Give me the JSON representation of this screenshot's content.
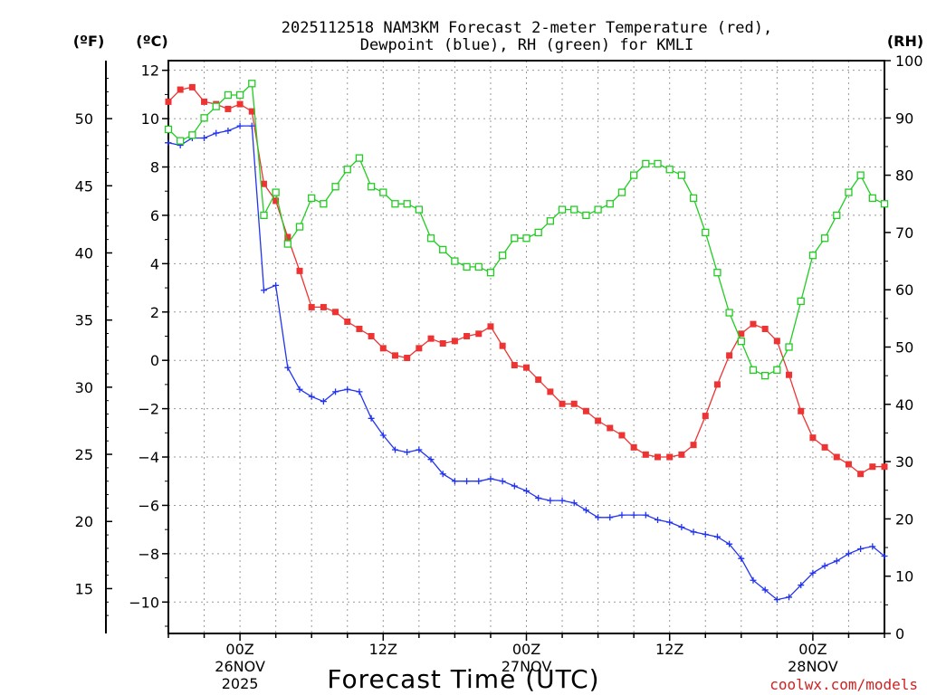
{
  "chart_data": {
    "type": "line",
    "title_line1": "2025112518 NAM3KM Forecast 2-meter Temperature (red),",
    "title_line2": "Dewpoint (blue), RH (green) for KMLI",
    "xlabel": "Forecast Time (UTC)",
    "left_axis_f_label": "(ºF)",
    "left_axis_c_label": "(ºC)",
    "right_axis_label": "(RH)",
    "watermark": "coolwx.com/models",
    "ylim_c": [
      -11.3,
      12.4
    ],
    "ylim_rh": [
      0,
      100
    ],
    "x_range_hours": [
      -6,
      54
    ],
    "c_ticks": [
      "12",
      "10",
      "8",
      "6",
      "4",
      "2",
      "0",
      "−2",
      "−4",
      "−6",
      "−8",
      "−10"
    ],
    "c_tick_values": [
      12,
      10,
      8,
      6,
      4,
      2,
      0,
      -2,
      -4,
      -6,
      -8,
      -10
    ],
    "f_ticks": [
      "50",
      "45",
      "40",
      "35",
      "30",
      "25",
      "20",
      "15"
    ],
    "f_tick_values": [
      50,
      45,
      40,
      35,
      30,
      25,
      20,
      15
    ],
    "rh_ticks": [
      "100",
      "90",
      "80",
      "70",
      "60",
      "50",
      "40",
      "30",
      "20",
      "10",
      "0"
    ],
    "rh_tick_values": [
      100,
      90,
      80,
      70,
      60,
      50,
      40,
      30,
      20,
      10,
      0
    ],
    "x_ticks": [
      {
        "hour": 0,
        "l1": "00Z",
        "l2": "26NOV",
        "l3": "2025"
      },
      {
        "hour": 12,
        "l1": "12Z",
        "l2": "",
        "l3": ""
      },
      {
        "hour": 24,
        "l1": "00Z",
        "l2": "27NOV",
        "l3": ""
      },
      {
        "hour": 36,
        "l1": "12Z",
        "l2": "",
        "l3": ""
      },
      {
        "hour": 48,
        "l1": "00Z",
        "l2": "28NOV",
        "l3": ""
      }
    ],
    "x_hours": [
      -6,
      -5,
      -4,
      -3,
      -2,
      -1,
      0,
      1,
      2,
      3,
      4,
      5,
      6,
      7,
      8,
      9,
      10,
      11,
      12,
      13,
      14,
      15,
      16,
      17,
      18,
      19,
      20,
      21,
      22,
      23,
      24,
      25,
      26,
      27,
      28,
      29,
      30,
      31,
      32,
      33,
      34,
      35,
      36,
      37,
      38,
      39,
      40,
      41,
      42,
      43,
      44,
      45,
      46,
      47,
      48,
      49,
      50,
      51,
      52,
      53,
      54
    ],
    "series": [
      {
        "name": "Temperature",
        "unit": "C",
        "color": "#ee3333",
        "marker": "filled-square",
        "values": [
          10.7,
          11.2,
          11.3,
          10.7,
          10.6,
          10.4,
          10.6,
          10.3,
          7.3,
          6.6,
          5.1,
          3.7,
          2.2,
          2.2,
          2.0,
          1.6,
          1.3,
          1.0,
          0.5,
          0.2,
          0.1,
          0.5,
          0.9,
          0.7,
          0.8,
          1.0,
          1.1,
          1.4,
          0.6,
          -0.2,
          -0.3,
          -0.8,
          -1.3,
          -1.8,
          -1.8,
          -2.1,
          -2.5,
          -2.8,
          -3.1,
          -3.6,
          -3.9,
          -4.0,
          -4.0,
          -3.9,
          -3.5,
          -2.3,
          -1.0,
          0.2,
          1.1,
          1.5,
          1.3,
          0.8,
          -0.6,
          -2.1,
          -3.2,
          -3.6,
          -4.0,
          -4.3,
          -4.7,
          -4.4,
          -4.4
        ]
      },
      {
        "name": "Dewpoint",
        "unit": "C",
        "color": "#2233ee",
        "marker": "plus",
        "values": [
          9.0,
          8.9,
          9.2,
          9.2,
          9.4,
          9.5,
          9.7,
          9.7,
          2.9,
          3.1,
          -0.3,
          -1.2,
          -1.5,
          -1.7,
          -1.3,
          -1.2,
          -1.3,
          -2.4,
          -3.1,
          -3.7,
          -3.8,
          -3.7,
          -4.1,
          -4.7,
          -5.0,
          -5.0,
          -5.0,
          -4.9,
          -5.0,
          -5.2,
          -5.4,
          -5.7,
          -5.8,
          -5.8,
          -5.9,
          -6.2,
          -6.5,
          -6.5,
          -6.4,
          -6.4,
          -6.4,
          -6.6,
          -6.7,
          -6.9,
          -7.1,
          -7.2,
          -7.3,
          -7.6,
          -8.2,
          -9.1,
          -9.5,
          -9.9,
          -9.8,
          -9.3,
          -8.8,
          -8.5,
          -8.3,
          -8.0,
          -7.8,
          -7.7,
          -8.1
        ]
      },
      {
        "name": "RH",
        "unit": "%",
        "color": "#22cc22",
        "marker": "open-square",
        "values": [
          88,
          86,
          87,
          90,
          92,
          94,
          94,
          96,
          73,
          77,
          68,
          71,
          76,
          75,
          78,
          81,
          83,
          78,
          77,
          75,
          75,
          74,
          69,
          67,
          65,
          64,
          64,
          63,
          66,
          69,
          69,
          70,
          72,
          74,
          74,
          73,
          74,
          75,
          77,
          80,
          82,
          82,
          81,
          80,
          76,
          70,
          63,
          56,
          51,
          46,
          45,
          46,
          50,
          58,
          66,
          69,
          73,
          77,
          80,
          76,
          75
        ]
      }
    ]
  }
}
